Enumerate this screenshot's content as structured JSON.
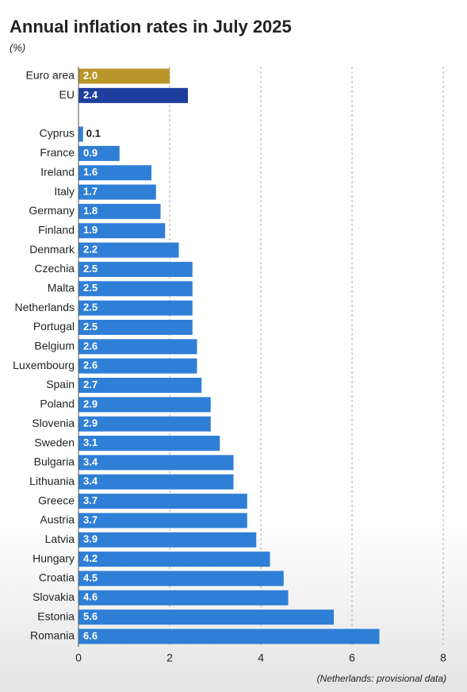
{
  "chart_data": {
    "type": "hbar",
    "title": "Annual inflation rates in July 2025",
    "subtitle": "(%)",
    "note": "(Netherlands: provisional data)",
    "categories": [
      "Euro area",
      "EU",
      null,
      "Cyprus",
      "France",
      "Ireland",
      "Italy",
      "Germany",
      "Finland",
      "Denmark",
      "Czechia",
      "Malta",
      "Netherlands",
      "Portugal",
      "Belgium",
      "Luxembourg",
      "Spain",
      "Poland",
      "Slovenia",
      "Sweden",
      "Bulgaria",
      "Lithuania",
      "Greece",
      "Austria",
      "Latvia",
      "Hungary",
      "Croatia",
      "Slovakia",
      "Estonia",
      "Romania"
    ],
    "values": [
      2.0,
      2.4,
      null,
      0.1,
      0.9,
      1.6,
      1.7,
      1.8,
      1.9,
      2.2,
      2.5,
      2.5,
      2.5,
      2.5,
      2.6,
      2.6,
      2.7,
      2.9,
      2.9,
      3.1,
      3.4,
      3.4,
      3.7,
      3.7,
      3.9,
      4.2,
      4.5,
      4.6,
      5.6,
      6.6
    ],
    "value_labels": [
      "2.0",
      "2.4",
      null,
      "0.1",
      "0.9",
      "1.6",
      "1.7",
      "1.8",
      "1.9",
      "2.2",
      "2.5",
      "2.5",
      "2.5",
      "2.5",
      "2.6",
      "2.6",
      "2.7",
      "2.9",
      "2.9",
      "3.1",
      "3.4",
      "3.4",
      "3.7",
      "3.7",
      "3.9",
      "4.2",
      "4.5",
      "4.6",
      "5.6",
      "6.6"
    ],
    "colors": [
      "#b8962a",
      "#1f3f9e",
      null,
      "#2f7fd6",
      "#2f7fd6",
      "#2f7fd6",
      "#2f7fd6",
      "#2f7fd6",
      "#2f7fd6",
      "#2f7fd6",
      "#2f7fd6",
      "#2f7fd6",
      "#2f7fd6",
      "#2f7fd6",
      "#2f7fd6",
      "#2f7fd6",
      "#2f7fd6",
      "#2f7fd6",
      "#2f7fd6",
      "#2f7fd6",
      "#2f7fd6",
      "#2f7fd6",
      "#2f7fd6",
      "#2f7fd6",
      "#2f7fd6",
      "#2f7fd6",
      "#2f7fd6",
      "#2f7fd6",
      "#2f7fd6",
      "#2f7fd6"
    ],
    "xlim": [
      0,
      8
    ],
    "xticks": [
      0,
      2,
      4,
      6,
      8
    ],
    "grid": true
  }
}
